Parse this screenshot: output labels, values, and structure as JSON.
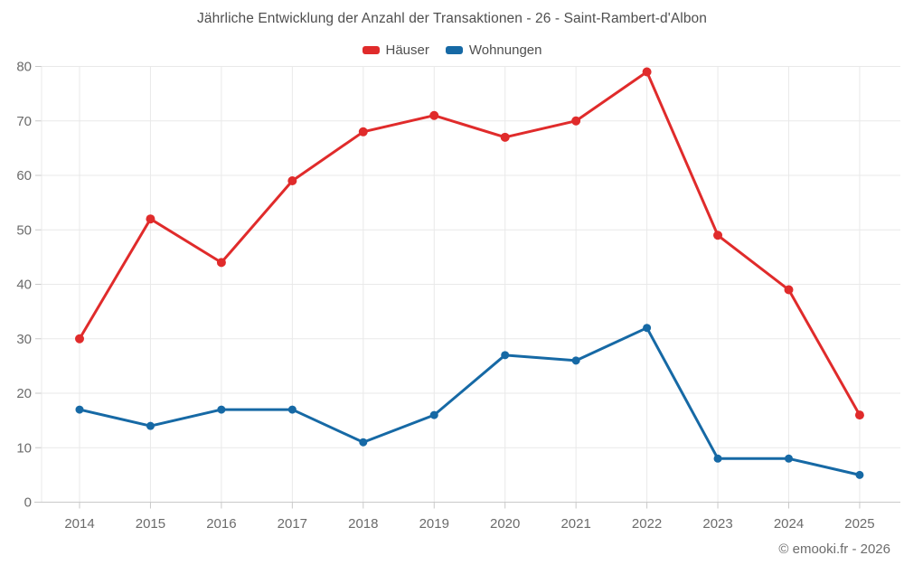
{
  "title": "Jährliche Entwicklung der Anzahl der Transaktionen - 26 - Saint-Rambert-d'Albon",
  "footer_credit": "© emooki.fr - 2026",
  "colors": {
    "hauser_red": "#e02b2b",
    "wohnungen_blue": "#1669a5",
    "grid": "#e9e9e9",
    "axis": "#c9c9c9",
    "tick_text": "#6b6b6b",
    "title_text": "#4f4f4f"
  },
  "chart_data": {
    "type": "line",
    "title": "Jährliche Entwicklung der Anzahl der Transaktionen - 26 - Saint-Rambert-d'Albon",
    "categories": [
      "2014",
      "2015",
      "2016",
      "2017",
      "2018",
      "2019",
      "2020",
      "2021",
      "2022",
      "2023",
      "2024",
      "2025"
    ],
    "series": [
      {
        "id": "haeuser",
        "name": "Häuser",
        "color": "#e02b2b",
        "values": [
          30,
          52,
          44,
          59,
          68,
          71,
          67,
          70,
          79,
          49,
          39,
          16
        ]
      },
      {
        "id": "wohnungen",
        "name": "Wohnungen",
        "color": "#1669a5",
        "values": [
          17,
          14,
          17,
          17,
          11,
          16,
          27,
          26,
          32,
          8,
          8,
          5
        ]
      }
    ],
    "xlabel": "",
    "ylabel": "",
    "ylim": [
      0,
      80
    ],
    "yticks": [
      0,
      10,
      20,
      30,
      40,
      50,
      60,
      70,
      80
    ],
    "grid": true,
    "legend_position": "top"
  }
}
